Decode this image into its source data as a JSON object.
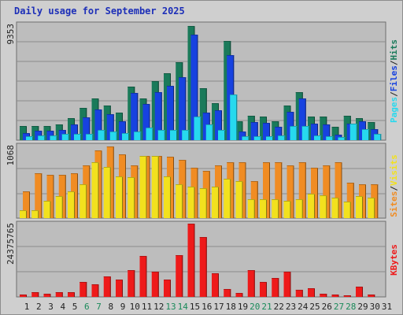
{
  "title": "Daily usage for September 2025",
  "colors": {
    "background": "#cfcfcf",
    "panel": "#bdbdbd",
    "title": "#1d2fb8",
    "hits": "#1a7a5a",
    "files": "#1742e0",
    "pages": "#27d9ee",
    "visits": "#f2e11e",
    "sites": "#f08c23",
    "kbytes": "#ee1a1a",
    "weekend_day": "#1a8a5a",
    "weekday": "#222222"
  },
  "days": [
    "1",
    "2",
    "3",
    "4",
    "5",
    "6",
    "7",
    "8",
    "9",
    "10",
    "11",
    "12",
    "13",
    "14",
    "15",
    "16",
    "17",
    "18",
    "19",
    "20",
    "21",
    "22",
    "23",
    "24",
    "25",
    "26",
    "27",
    "28",
    "29",
    "30",
    "31"
  ],
  "weekend_days": [
    "6",
    "7",
    "13",
    "14",
    "20",
    "21",
    "27",
    "28"
  ],
  "chart_data": [
    {
      "type": "bar",
      "panel": "top",
      "ymax_label": "9353",
      "ylim": [
        0,
        9353
      ],
      "right_labels": [
        {
          "text": "Pages",
          "series": "pages"
        },
        {
          "text": "Files",
          "series": "files"
        },
        {
          "text": "Hits",
          "series": "hits"
        }
      ],
      "separator": "/",
      "categories": [
        "1",
        "2",
        "3",
        "4",
        "5",
        "6",
        "7",
        "8",
        "9",
        "10",
        "11",
        "12",
        "13",
        "14",
        "15",
        "16",
        "17",
        "18",
        "19",
        "20",
        "21",
        "22",
        "23",
        "24",
        "25",
        "26",
        "27",
        "28",
        "29",
        "30",
        "31"
      ],
      "series": [
        {
          "name": "Hits",
          "key": "hits",
          "values": [
            1150,
            1150,
            1150,
            1250,
            1800,
            2600,
            3400,
            2800,
            2200,
            4300,
            3400,
            4800,
            5400,
            6300,
            9200,
            4200,
            3000,
            8000,
            1500,
            2000,
            1900,
            1500,
            2800,
            3900,
            1900,
            1900,
            1050,
            2000,
            1750,
            1450,
            0
          ]
        },
        {
          "name": "Files",
          "key": "files",
          "values": [
            550,
            750,
            750,
            800,
            1300,
            1850,
            2500,
            2100,
            1500,
            3800,
            2900,
            3900,
            4400,
            5100,
            8500,
            2200,
            2400,
            6900,
            700,
            1450,
            1400,
            1050,
            2300,
            3400,
            1350,
            1250,
            450,
            1350,
            1500,
            900,
            0
          ]
        },
        {
          "name": "Pages",
          "key": "pages",
          "values": [
            300,
            400,
            400,
            500,
            500,
            500,
            800,
            700,
            600,
            700,
            1000,
            850,
            800,
            800,
            1900,
            1250,
            800,
            3700,
            300,
            300,
            300,
            400,
            1150,
            1150,
            350,
            300,
            250,
            1350,
            900,
            500,
            0
          ]
        }
      ]
    },
    {
      "type": "bar",
      "panel": "middle",
      "ymax_label": "1068",
      "ylim": [
        0,
        1068
      ],
      "right_labels": [
        {
          "text": "Sites",
          "series": "sites"
        },
        {
          "text": "Visits",
          "series": "visits"
        }
      ],
      "separator": "/",
      "categories": [
        "1",
        "2",
        "3",
        "4",
        "5",
        "6",
        "7",
        "8",
        "9",
        "10",
        "11",
        "12",
        "13",
        "14",
        "15",
        "16",
        "17",
        "18",
        "19",
        "20",
        "21",
        "22",
        "23",
        "24",
        "25",
        "26",
        "27",
        "28",
        "29",
        "30",
        "31"
      ],
      "series": [
        {
          "name": "Sites",
          "key": "sites",
          "values": [
            400,
            660,
            640,
            640,
            660,
            780,
            1000,
            1060,
            940,
            780,
            920,
            920,
            900,
            860,
            740,
            700,
            780,
            820,
            820,
            540,
            820,
            820,
            780,
            820,
            740,
            780,
            820,
            520,
            500,
            500,
            0
          ]
        },
        {
          "name": "Visits",
          "key": "visits",
          "values": [
            120,
            120,
            250,
            330,
            400,
            500,
            820,
            760,
            620,
            600,
            920,
            920,
            620,
            500,
            460,
            440,
            460,
            580,
            540,
            280,
            280,
            280,
            260,
            280,
            360,
            340,
            300,
            240,
            320,
            300,
            0
          ]
        }
      ]
    },
    {
      "type": "bar",
      "panel": "bottom",
      "ymax_label": "24375765",
      "ylim": [
        0,
        24375765
      ],
      "right_labels": [
        {
          "text": "KBytes",
          "series": "kbytes"
        }
      ],
      "categories": [
        "1",
        "2",
        "3",
        "4",
        "5",
        "6",
        "7",
        "8",
        "9",
        "10",
        "11",
        "12",
        "13",
        "14",
        "15",
        "16",
        "17",
        "18",
        "19",
        "20",
        "21",
        "22",
        "23",
        "24",
        "25",
        "26",
        "27",
        "28",
        "29",
        "30",
        "31"
      ],
      "series": [
        {
          "name": "KBytes",
          "key": "kbytes",
          "values": [
            800000,
            1500000,
            1000000,
            1500000,
            1500000,
            5100000,
            4300000,
            6700000,
            5800000,
            8800000,
            13700000,
            8500000,
            5800000,
            13800000,
            24300000,
            20000000,
            7800000,
            2700000,
            1300000,
            8800000,
            4900000,
            6300000,
            8500000,
            2400000,
            3000000,
            1000000,
            700000,
            600000,
            3300000,
            800000,
            0
          ]
        }
      ]
    }
  ]
}
